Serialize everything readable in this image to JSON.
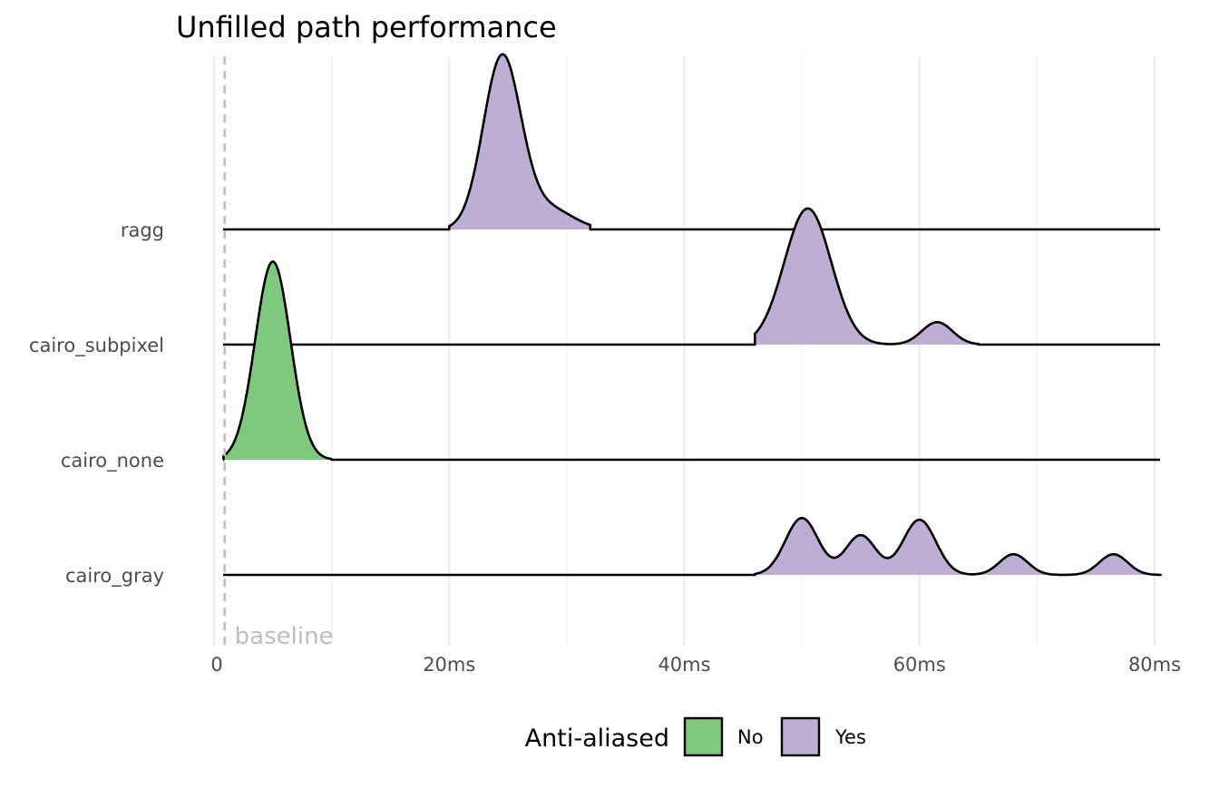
{
  "chart_data": {
    "type": "ridgeline",
    "title": "Unfilled path performance",
    "xlabel": "",
    "ylabel": "",
    "xlim": [
      0,
      80
    ],
    "x_ticks": [
      0,
      20,
      40,
      60,
      80
    ],
    "x_tick_labels": [
      "0",
      "20ms",
      "40ms",
      "60ms",
      "80ms"
    ],
    "grid": true,
    "categories": [
      "ragg",
      "cairo_subpixel",
      "cairo_none",
      "cairo_gray"
    ],
    "series": [
      {
        "category": "ragg",
        "anti_aliased": "Yes",
        "range": [
          20,
          32
        ],
        "peaks": [
          {
            "center_ms": 24.5,
            "height": 1.0,
            "sd_ms": 1.6
          },
          {
            "center_ms": 28.5,
            "height": 0.12,
            "sd_ms": 2.0
          }
        ]
      },
      {
        "category": "cairo_subpixel",
        "anti_aliased": "Yes",
        "range": [
          46,
          65
        ],
        "peaks": [
          {
            "center_ms": 50.5,
            "height": 0.79,
            "sd_ms": 2.0
          },
          {
            "center_ms": 61.5,
            "height": 0.13,
            "sd_ms": 1.3
          }
        ]
      },
      {
        "category": "cairo_none",
        "anti_aliased": "No",
        "range": [
          0.8,
          10
        ],
        "peaks": [
          {
            "center_ms": 5.0,
            "height": 1.15,
            "sd_ms": 1.5
          }
        ]
      },
      {
        "category": "cairo_gray",
        "anti_aliased": "Yes",
        "range": [
          46,
          80.5
        ],
        "peaks": [
          {
            "center_ms": 50.0,
            "height": 0.33,
            "sd_ms": 1.4
          },
          {
            "center_ms": 55.0,
            "height": 0.23,
            "sd_ms": 1.3
          },
          {
            "center_ms": 60.0,
            "height": 0.32,
            "sd_ms": 1.4
          },
          {
            "center_ms": 68.0,
            "height": 0.12,
            "sd_ms": 1.2
          },
          {
            "center_ms": 76.5,
            "height": 0.12,
            "sd_ms": 1.2
          }
        ]
      }
    ],
    "baseline": {
      "x_ms": 0.9,
      "label": "baseline"
    },
    "legend": {
      "title": "Anti-aliased",
      "placement": "bottom",
      "items": [
        {
          "label": "No",
          "color": "#7fc97f"
        },
        {
          "label": "Yes",
          "color": "#beaed4"
        }
      ]
    },
    "colors": {
      "No": "#7fc97f",
      "Yes": "#beaed4"
    }
  }
}
